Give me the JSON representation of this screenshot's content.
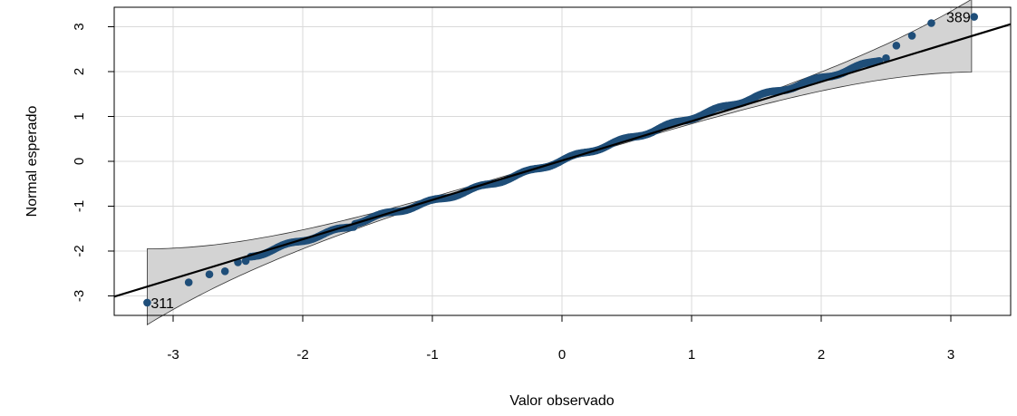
{
  "chart_data": {
    "type": "scatter",
    "title": "",
    "xlabel": "Valor observado",
    "ylabel": "Normal esperado",
    "xlim": [
      -3.45,
      3.45
    ],
    "ylim": [
      -3.45,
      3.45
    ],
    "x_ticks": [
      "-3",
      "-2",
      "-1",
      "0",
      "1",
      "2",
      "3"
    ],
    "y_ticks": [
      "-3",
      "-2",
      "-1",
      "0",
      "1",
      "2",
      "3"
    ],
    "grid": true,
    "reference_line": {
      "slope": 0.88,
      "intercept": 0.02
    },
    "confidence_band": true,
    "colors": {
      "points": "#1f4e79",
      "line": "#000000",
      "band": "#d3d3d3",
      "grid": "#d9d9d9"
    },
    "labeled_points": [
      {
        "label": "311",
        "x": -3.2,
        "y": -3.15
      },
      {
        "label": "389",
        "x": 3.18,
        "y": 3.22
      }
    ],
    "extreme_points": [
      {
        "x": -3.2,
        "y": -3.15
      },
      {
        "x": -2.88,
        "y": -2.7
      },
      {
        "x": -2.72,
        "y": -2.52
      },
      {
        "x": -2.6,
        "y": -2.45
      },
      {
        "x": -2.5,
        "y": -2.25
      },
      {
        "x": -2.44,
        "y": -2.22
      },
      {
        "x": 2.5,
        "y": 2.3
      },
      {
        "x": 2.58,
        "y": 2.58
      },
      {
        "x": 2.7,
        "y": 2.8
      },
      {
        "x": 2.85,
        "y": 3.08
      },
      {
        "x": 3.18,
        "y": 3.22
      }
    ]
  }
}
